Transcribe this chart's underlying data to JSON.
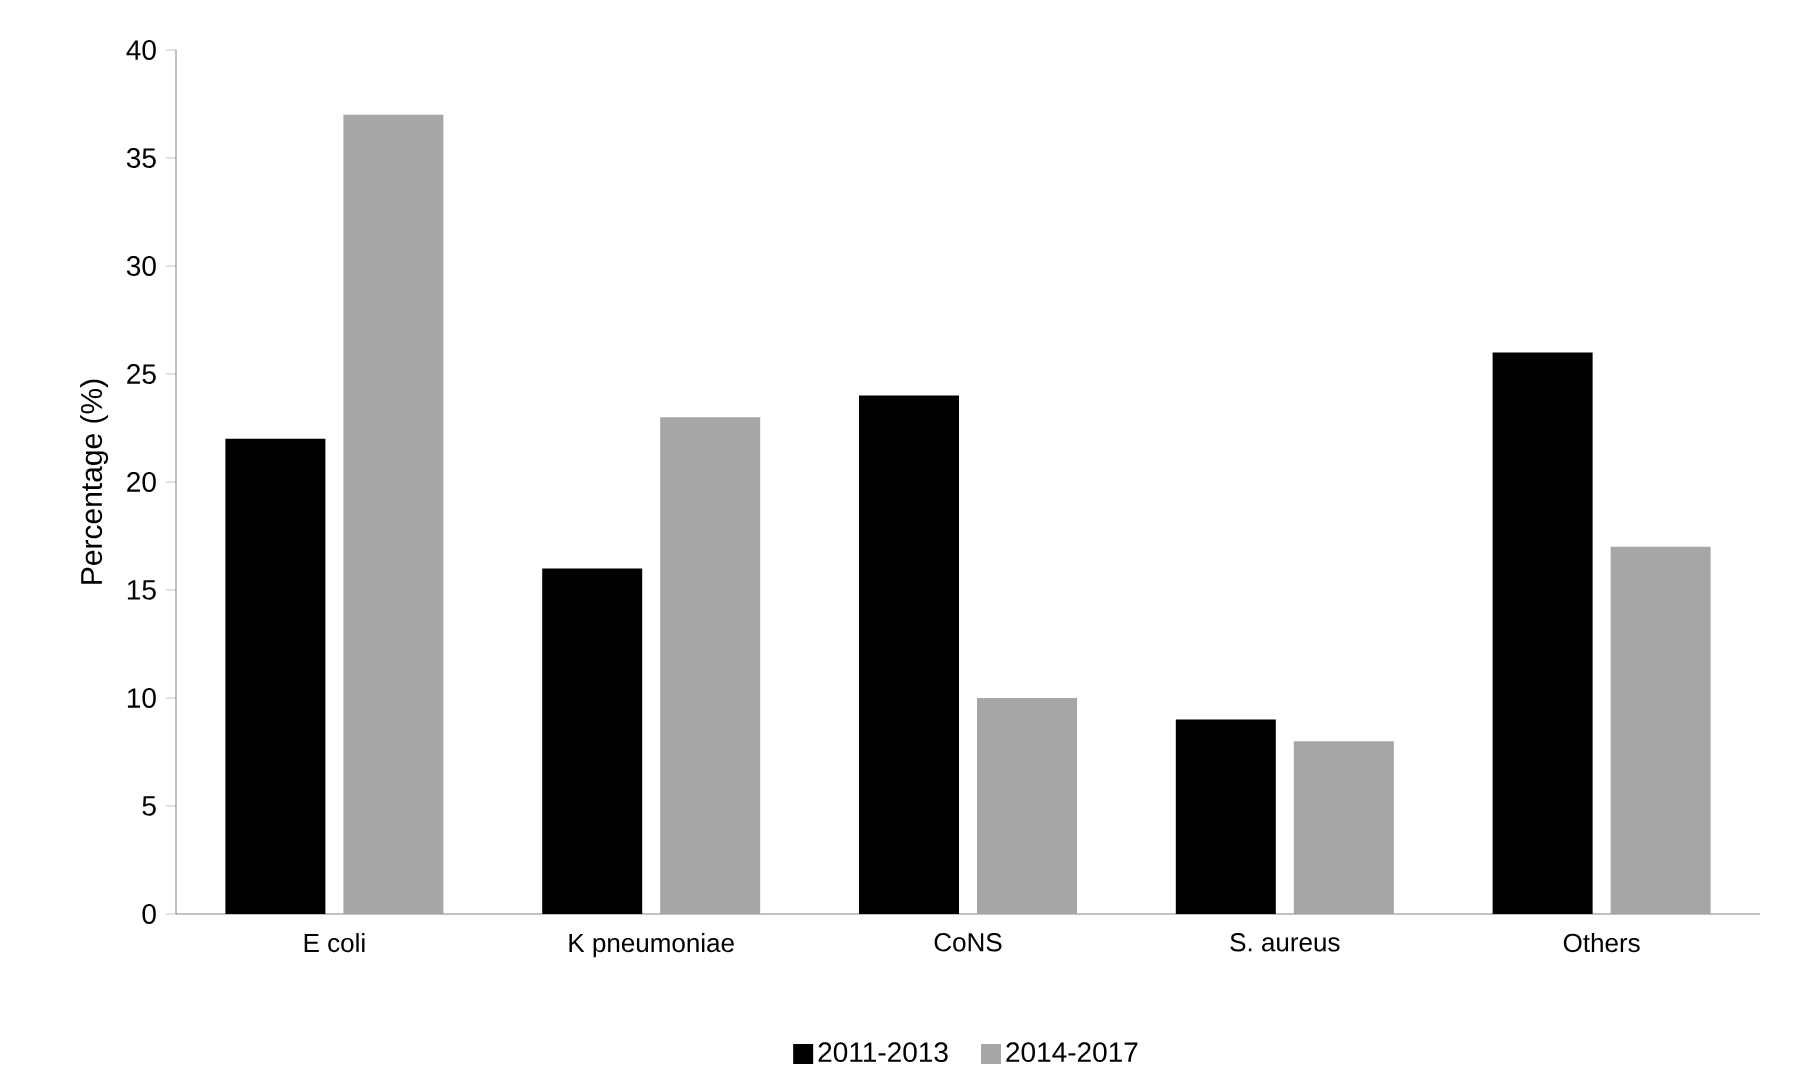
{
  "chart_data": {
    "type": "bar",
    "ylabel": "Percentage (%)",
    "categories": [
      "E coli",
      "K pneumoniae",
      "CoNS",
      "S. aureus",
      "Others"
    ],
    "series": [
      {
        "name": "2011-2013",
        "color": "#000000",
        "values": [
          22,
          16,
          24,
          9,
          26
        ]
      },
      {
        "name": "2014-2017",
        "color": "#a6a6a6",
        "values": [
          37,
          23,
          10,
          8,
          17
        ]
      }
    ],
    "ylim": [
      0,
      40
    ],
    "yticks": [
      0,
      5,
      10,
      15,
      20,
      25,
      30,
      35,
      40
    ],
    "grid": false,
    "legend": "bottom"
  }
}
